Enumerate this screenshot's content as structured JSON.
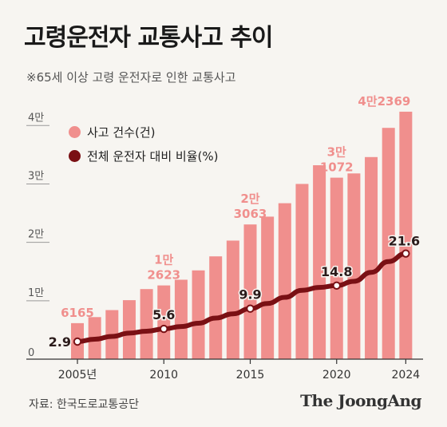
{
  "header": {
    "title": "고령운전자 교통사고 추이",
    "subtitle": "※65세 이상 고령 운전자로 인한 교통사고"
  },
  "footer": {
    "source": "자료: 한국도로교통공단",
    "brand": "The JoongAng"
  },
  "colors": {
    "bar": "#f08f8d",
    "bar_label": "#f08f8d",
    "line": "#7a1014",
    "background": "#f7f5f1"
  },
  "chart_data": {
    "type": "bar",
    "title": "고령운전자 교통사고 추이",
    "subtitle": "※65세 이상 고령 운전자로 인한 교통사고",
    "categories": [
      2005,
      2006,
      2007,
      2008,
      2009,
      2010,
      2011,
      2012,
      2013,
      2014,
      2015,
      2016,
      2017,
      2018,
      2019,
      2020,
      2021,
      2022,
      2023,
      2024
    ],
    "x_tick_labels": [
      {
        "year": 2005,
        "label": "2005년"
      },
      {
        "year": 2010,
        "label": "2010"
      },
      {
        "year": 2015,
        "label": "2015"
      },
      {
        "year": 2020,
        "label": "2020"
      },
      {
        "year": 2024,
        "label": "2024"
      }
    ],
    "y_ticks": [
      {
        "value": 0,
        "label": "0"
      },
      {
        "value": 10000,
        "label": "1만"
      },
      {
        "value": 20000,
        "label": "2만"
      },
      {
        "value": 30000,
        "label": "3만"
      },
      {
        "value": 40000,
        "label": "4만"
      }
    ],
    "ylim": [
      0,
      44000
    ],
    "series": [
      {
        "name": "사고 건수(건)",
        "type": "bar",
        "values": [
          6165,
          7200,
          8400,
          10100,
          12000,
          12623,
          13600,
          15200,
          17600,
          20300,
          23063,
          24400,
          26700,
          30000,
          33200,
          31072,
          31800,
          34600,
          39600,
          42369
        ],
        "labels": [
          {
            "year": 2005,
            "text": "6165"
          },
          {
            "year": 2010,
            "text": "1만\n2623"
          },
          {
            "year": 2015,
            "text": "2만\n3063"
          },
          {
            "year": 2020,
            "text": "3만\n1072"
          },
          {
            "year": 2024,
            "text": "4만2369"
          }
        ]
      },
      {
        "name": "전체 운전자 대비 비율(%)",
        "type": "line",
        "values": [
          2.9,
          3.4,
          4.0,
          4.7,
          5.1,
          5.6,
          6.1,
          6.8,
          7.9,
          8.8,
          9.9,
          11.0,
          12.3,
          13.8,
          14.4,
          14.8,
          15.7,
          17.6,
          19.9,
          21.6
        ],
        "labels": [
          {
            "year": 2005,
            "text": "2.9"
          },
          {
            "year": 2010,
            "text": "5.6"
          },
          {
            "year": 2015,
            "text": "9.9"
          },
          {
            "year": 2020,
            "text": "14.8"
          },
          {
            "year": 2024,
            "text": "21.6"
          }
        ]
      }
    ],
    "grid": false,
    "legend_position": "top-left"
  }
}
